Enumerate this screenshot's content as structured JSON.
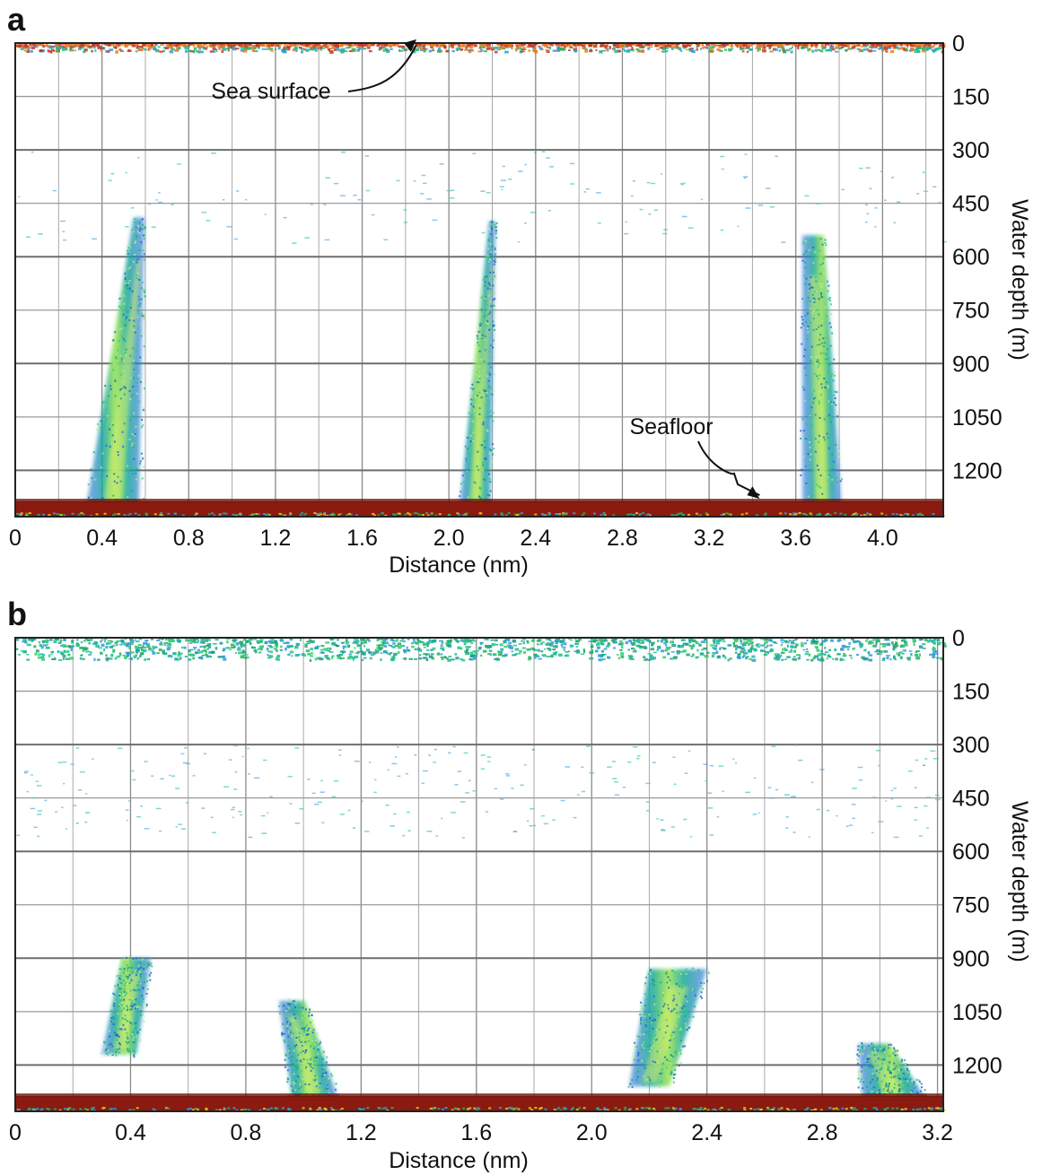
{
  "chart_data": [
    {
      "type": "echogram",
      "panel_label": "a",
      "xlabel": "Distance (nm)",
      "ylabel": "Water depth (m)",
      "x_ticks": [
        "0",
        "0.4",
        "0.8",
        "1.2",
        "1.6",
        "2.0",
        "2.4",
        "2.8",
        "3.2",
        "3.6",
        "4.0"
      ],
      "y_ticks": [
        "0",
        "150",
        "300",
        "450",
        "600",
        "750",
        "900",
        "1050",
        "1200"
      ],
      "xlim": [
        0,
        4.28
      ],
      "ylim": [
        0,
        1330
      ],
      "grid": true,
      "seafloor_depth": 1295,
      "annotations": [
        {
          "text": "Sea surface",
          "x": 1.85,
          "y": 40
        },
        {
          "text": "Seafloor",
          "x": 3.4,
          "y": 1290
        }
      ],
      "plumes": [
        {
          "x_base": 0.45,
          "y_base": 1295,
          "x_top": 0.57,
          "y_top": 490,
          "width_base": 0.24,
          "width_top": 0.05
        },
        {
          "x_base": 2.12,
          "y_base": 1295,
          "x_top": 2.2,
          "y_top": 500,
          "width_base": 0.14,
          "width_top": 0.03
        },
        {
          "x_base": 3.72,
          "y_base": 1295,
          "x_top": 3.68,
          "y_top": 540,
          "width_base": 0.18,
          "width_top": 0.1
        }
      ]
    },
    {
      "type": "echogram",
      "panel_label": "b",
      "xlabel": "Distance (nm)",
      "ylabel": "Water depth (m)",
      "x_ticks": [
        "0",
        "0.4",
        "0.8",
        "1.2",
        "1.6",
        "2.0",
        "2.4",
        "2.8",
        "3.2"
      ],
      "y_ticks": [
        "0",
        "150",
        "300",
        "450",
        "600",
        "750",
        "900",
        "1050",
        "1200"
      ],
      "xlim": [
        0,
        3.22
      ],
      "ylim": [
        0,
        1330
      ],
      "grid": true,
      "seafloor_depth": 1295,
      "plumes": [
        {
          "x_base": 0.36,
          "y_base": 1170,
          "x_top": 0.42,
          "y_top": 900,
          "width_base": 0.12,
          "width_top": 0.1
        },
        {
          "x_base": 1.04,
          "y_base": 1295,
          "x_top": 0.96,
          "y_top": 1020,
          "width_base": 0.16,
          "width_top": 0.09
        },
        {
          "x_base": 2.2,
          "y_base": 1260,
          "x_top": 2.3,
          "y_top": 930,
          "width_base": 0.14,
          "width_top": 0.2
        },
        {
          "x_base": 3.05,
          "y_base": 1295,
          "x_top": 2.98,
          "y_top": 1140,
          "width_base": 0.22,
          "width_top": 0.11
        }
      ]
    }
  ]
}
